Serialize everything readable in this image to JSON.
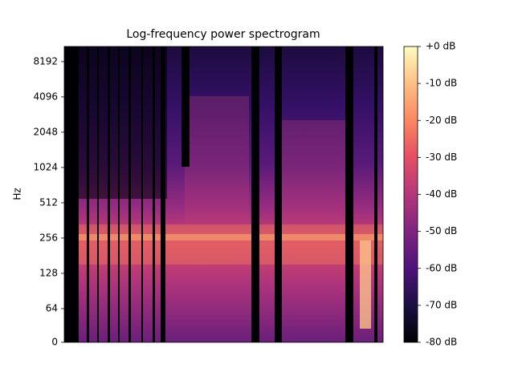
{
  "chart_data": {
    "type": "spectrogram",
    "title": "Log-frequency power spectrogram",
    "ylabel": "Hz",
    "yscale": "symlog",
    "linthresh": 64,
    "ylim": [
      0,
      11025
    ],
    "yticks": [
      0,
      64,
      128,
      256,
      512,
      1024,
      2048,
      4096,
      8192
    ],
    "colormap": "magma",
    "clim": [
      -80,
      0
    ],
    "cticks": [
      {
        "value": 0,
        "label": "+0 dB"
      },
      {
        "value": -10,
        "label": "-10 dB"
      },
      {
        "value": -20,
        "label": "-20 dB"
      },
      {
        "value": -30,
        "label": "-30 dB"
      },
      {
        "value": -40,
        "label": "-40 dB"
      },
      {
        "value": -50,
        "label": "-50 dB"
      },
      {
        "value": -60,
        "label": "-60 dB"
      },
      {
        "value": -70,
        "label": "-70 dB"
      },
      {
        "value": -80,
        "label": "-80 dB"
      }
    ]
  }
}
